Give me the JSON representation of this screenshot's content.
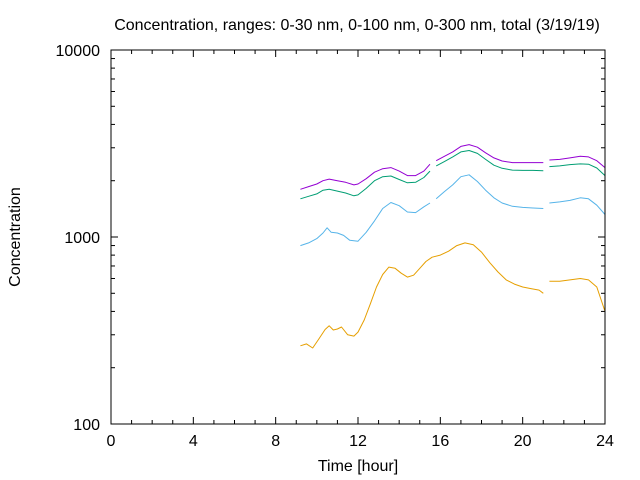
{
  "chart_data": {
    "type": "line",
    "title": "Concentration, ranges: 0-30 nm, 0-100 nm, 0-300 nm, total (3/19/19)",
    "xlabel": "Time [hour]",
    "ylabel": "Concentration",
    "xlim": [
      0,
      24
    ],
    "ylim": [
      100,
      10000
    ],
    "yscale": "log",
    "grid": false,
    "legend": "none",
    "x_ticks": [
      0,
      4,
      8,
      12,
      16,
      20,
      24
    ],
    "y_ticks": [
      100,
      1000,
      10000
    ],
    "x_tick_labels": [
      "0",
      "4",
      "8",
      "12",
      "16",
      "20",
      "24"
    ],
    "y_tick_labels": [
      "100",
      "1000",
      "10000"
    ],
    "series": [
      {
        "color": "#9400d3",
        "segments": [
          [
            [
              9.2,
              1800
            ],
            [
              9.6,
              1860
            ],
            [
              10.0,
              1920
            ],
            [
              10.3,
              2000
            ],
            [
              10.6,
              2040
            ],
            [
              11.0,
              2000
            ],
            [
              11.4,
              1960
            ],
            [
              11.8,
              1900
            ],
            [
              12.0,
              1920
            ],
            [
              12.4,
              2050
            ],
            [
              12.8,
              2220
            ],
            [
              13.2,
              2320
            ],
            [
              13.6,
              2350
            ],
            [
              14.0,
              2250
            ],
            [
              14.4,
              2130
            ],
            [
              14.8,
              2130
            ],
            [
              15.2,
              2250
            ],
            [
              15.5,
              2450
            ]
          ],
          [
            [
              15.8,
              2560
            ],
            [
              16.2,
              2700
            ],
            [
              16.6,
              2850
            ],
            [
              17.0,
              3050
            ],
            [
              17.4,
              3120
            ],
            [
              17.8,
              3020
            ],
            [
              18.2,
              2820
            ],
            [
              18.6,
              2650
            ],
            [
              19.0,
              2550
            ],
            [
              19.5,
              2500
            ],
            [
              20.0,
              2500
            ],
            [
              20.5,
              2500
            ],
            [
              21.0,
              2500
            ]
          ],
          [
            [
              21.3,
              2580
            ],
            [
              21.8,
              2600
            ],
            [
              22.3,
              2650
            ],
            [
              22.8,
              2700
            ],
            [
              23.2,
              2680
            ],
            [
              23.6,
              2560
            ],
            [
              24.0,
              2350
            ]
          ]
        ]
      },
      {
        "color": "#009e73",
        "segments": [
          [
            [
              9.2,
              1600
            ],
            [
              9.6,
              1650
            ],
            [
              10.0,
              1700
            ],
            [
              10.3,
              1780
            ],
            [
              10.6,
              1800
            ],
            [
              11.0,
              1760
            ],
            [
              11.4,
              1720
            ],
            [
              11.8,
              1660
            ],
            [
              12.0,
              1680
            ],
            [
              12.4,
              1820
            ],
            [
              12.8,
              2000
            ],
            [
              13.2,
              2100
            ],
            [
              13.6,
              2120
            ],
            [
              14.0,
              2030
            ],
            [
              14.4,
              1950
            ],
            [
              14.8,
              1960
            ],
            [
              15.2,
              2080
            ],
            [
              15.5,
              2250
            ]
          ],
          [
            [
              15.8,
              2400
            ],
            [
              16.2,
              2530
            ],
            [
              16.6,
              2680
            ],
            [
              17.0,
              2850
            ],
            [
              17.4,
              2900
            ],
            [
              17.8,
              2800
            ],
            [
              18.2,
              2600
            ],
            [
              18.6,
              2420
            ],
            [
              19.0,
              2330
            ],
            [
              19.5,
              2280
            ],
            [
              20.0,
              2270
            ],
            [
              20.5,
              2270
            ],
            [
              21.0,
              2260
            ]
          ],
          [
            [
              21.3,
              2380
            ],
            [
              21.8,
              2400
            ],
            [
              22.3,
              2440
            ],
            [
              22.8,
              2460
            ],
            [
              23.2,
              2450
            ],
            [
              23.6,
              2340
            ],
            [
              24.0,
              2130
            ]
          ]
        ]
      },
      {
        "color": "#56b4e9",
        "segments": [
          [
            [
              9.2,
              900
            ],
            [
              9.6,
              930
            ],
            [
              10.0,
              980
            ],
            [
              10.3,
              1050
            ],
            [
              10.5,
              1120
            ],
            [
              10.7,
              1060
            ],
            [
              11.0,
              1050
            ],
            [
              11.3,
              1020
            ],
            [
              11.6,
              960
            ],
            [
              12.0,
              950
            ],
            [
              12.4,
              1060
            ],
            [
              12.8,
              1220
            ],
            [
              13.2,
              1420
            ],
            [
              13.6,
              1530
            ],
            [
              14.0,
              1470
            ],
            [
              14.4,
              1360
            ],
            [
              14.8,
              1350
            ],
            [
              15.2,
              1450
            ],
            [
              15.5,
              1520
            ]
          ],
          [
            [
              15.8,
              1600
            ],
            [
              16.2,
              1750
            ],
            [
              16.6,
              1900
            ],
            [
              17.0,
              2100
            ],
            [
              17.4,
              2150
            ],
            [
              17.8,
              1980
            ],
            [
              18.2,
              1780
            ],
            [
              18.6,
              1620
            ],
            [
              19.0,
              1520
            ],
            [
              19.5,
              1460
            ],
            [
              20.0,
              1440
            ],
            [
              20.5,
              1430
            ],
            [
              21.0,
              1420
            ]
          ],
          [
            [
              21.3,
              1520
            ],
            [
              21.8,
              1540
            ],
            [
              22.3,
              1570
            ],
            [
              22.8,
              1620
            ],
            [
              23.2,
              1600
            ],
            [
              23.6,
              1480
            ],
            [
              24.0,
              1320
            ]
          ]
        ]
      },
      {
        "color": "#e69f00",
        "segments": [
          [
            [
              9.2,
              262
            ],
            [
              9.5,
              268
            ],
            [
              9.8,
              255
            ],
            [
              10.1,
              285
            ],
            [
              10.4,
              320
            ],
            [
              10.6,
              335
            ],
            [
              10.8,
              318
            ],
            [
              11.0,
              322
            ],
            [
              11.2,
              330
            ],
            [
              11.5,
              300
            ],
            [
              11.8,
              295
            ],
            [
              12.0,
              310
            ],
            [
              12.3,
              360
            ],
            [
              12.6,
              440
            ],
            [
              12.9,
              540
            ],
            [
              13.2,
              630
            ],
            [
              13.5,
              690
            ],
            [
              13.8,
              680
            ],
            [
              14.1,
              640
            ],
            [
              14.4,
              610
            ],
            [
              14.7,
              625
            ],
            [
              15.0,
              680
            ],
            [
              15.3,
              740
            ],
            [
              15.6,
              780
            ],
            [
              16.0,
              800
            ],
            [
              16.4,
              840
            ],
            [
              16.8,
              900
            ],
            [
              17.2,
              930
            ],
            [
              17.6,
              910
            ],
            [
              18.0,
              830
            ],
            [
              18.4,
              730
            ],
            [
              18.8,
              650
            ],
            [
              19.2,
              590
            ],
            [
              19.6,
              560
            ],
            [
              20.0,
              540
            ],
            [
              20.4,
              530
            ],
            [
              20.8,
              520
            ],
            [
              21.0,
              500
            ]
          ],
          [
            [
              21.3,
              580
            ],
            [
              21.8,
              580
            ],
            [
              22.3,
              590
            ],
            [
              22.8,
              600
            ],
            [
              23.2,
              590
            ],
            [
              23.6,
              540
            ],
            [
              24.0,
              400
            ]
          ]
        ]
      }
    ]
  }
}
